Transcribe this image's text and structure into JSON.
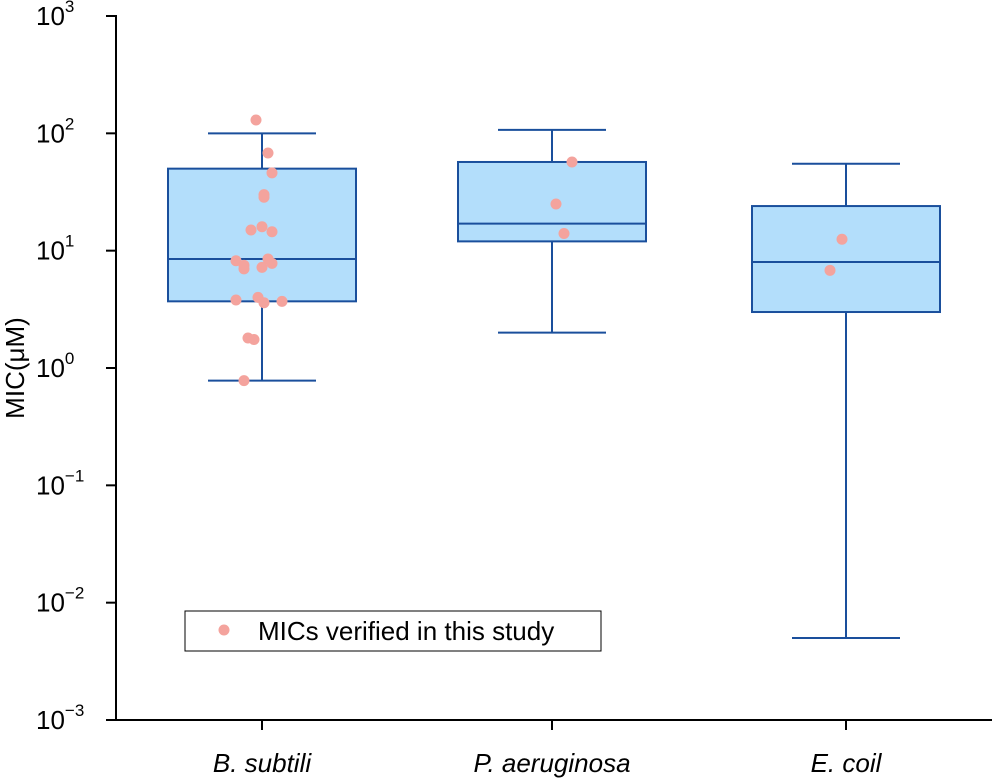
{
  "chart_data": {
    "type": "box",
    "title": "",
    "xlabel": "",
    "ylabel": "MIC(μM)",
    "yscale": "log",
    "ylim": [
      0.001,
      1000
    ],
    "yticks": [
      {
        "base": "10",
        "exp": "−3",
        "value": 0.001
      },
      {
        "base": "10",
        "exp": "−2",
        "value": 0.01
      },
      {
        "base": "10",
        "exp": "−1",
        "value": 0.1
      },
      {
        "base": "10",
        "exp": "0",
        "value": 1
      },
      {
        "base": "10",
        "exp": "1",
        "value": 10
      },
      {
        "base": "10",
        "exp": "2",
        "value": 100
      },
      {
        "base": "10",
        "exp": "3",
        "value": 1000
      }
    ],
    "categories": [
      "B. subtili",
      "P. aeruginosa",
      "E. coil"
    ],
    "boxes": [
      {
        "category": "B. subtili",
        "whisker_low": 0.78,
        "q1": 3.7,
        "median": 8.5,
        "q3": 50,
        "whisker_high": 100
      },
      {
        "category": "P. aeruginosa",
        "whisker_low": 2.0,
        "q1": 12,
        "median": 17,
        "q3": 57,
        "whisker_high": 107
      },
      {
        "category": "E. coil",
        "whisker_low": 0.005,
        "q1": 3.0,
        "median": 8.0,
        "q3": 24,
        "whisker_high": 55
      }
    ],
    "points": [
      {
        "category": "B. subtili",
        "values": [
          130,
          68,
          46,
          30,
          28.5,
          16,
          15,
          14.5,
          8.5,
          8.2,
          7.8,
          7.5,
          7.2,
          7.0,
          4.0,
          3.8,
          3.7,
          3.6,
          1.8,
          1.75,
          0.78
        ]
      },
      {
        "category": "P. aeruginosa",
        "values": [
          57,
          25,
          14
        ]
      },
      {
        "category": "E. coil",
        "values": [
          12.5,
          6.8
        ]
      }
    ],
    "colors": {
      "box_fill": "#b3defb",
      "box_stroke": "#1a4f9c",
      "points": "#f4a39d"
    },
    "legend": {
      "label": "MICs verified in this study",
      "placement": "bottom-left"
    },
    "grid": false
  }
}
